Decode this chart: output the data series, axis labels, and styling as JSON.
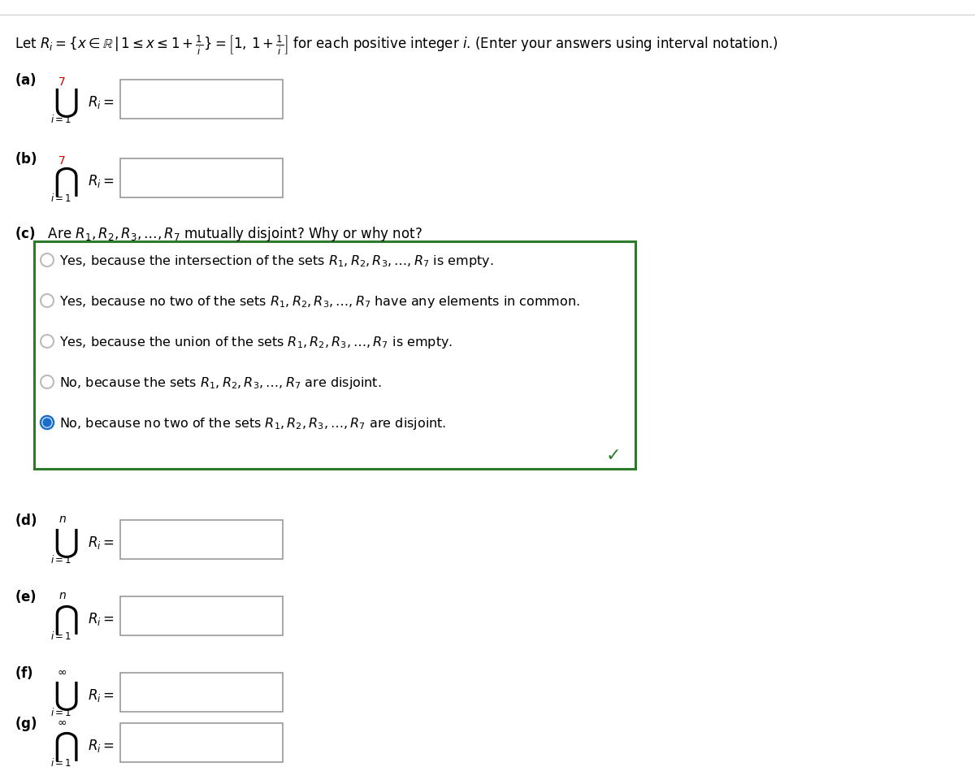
{
  "bg_color": "#ffffff",
  "font_size_header": 12,
  "font_size_label": 12,
  "font_size_option": 11.5,
  "font_size_symbol": 20,
  "font_size_sub": 8.5,
  "box_color": "#2d7a2d",
  "selected_radio_color": "#1a6fcc",
  "checkmark_color": "#2d7a2d",
  "radio_unsel_color": "#bbbbbb",
  "superscript_red": "#cc0000",
  "options": [
    "Yes, because the intersection of the sets $R_1, R_2, R_3, \\ldots, R_7$ is empty.",
    "Yes, because no two of the sets $R_1, R_2, R_3, \\ldots, R_7$ have any elements in common.",
    "Yes, because the union of the sets $R_1, R_2, R_3, \\ldots, R_7$ is empty.",
    "No, because the sets $R_1, R_2, R_3, \\ldots, R_7$ are disjoint.",
    "No, because no two of the sets $R_1, R_2, R_3, \\ldots, R_7$ are disjoint."
  ],
  "selected_option": 4,
  "part_labels": [
    "(a)",
    "(b)",
    "(c)",
    "(d)",
    "(e)",
    "(f)",
    "(g)"
  ],
  "part_c_question": "Are $R_1, R_2, R_3, \\ldots, R_7$ mutually disjoint? Why or why not?",
  "superscripts_ab": "7",
  "superscripts_de": "n",
  "superscripts_fg": "\\infty"
}
